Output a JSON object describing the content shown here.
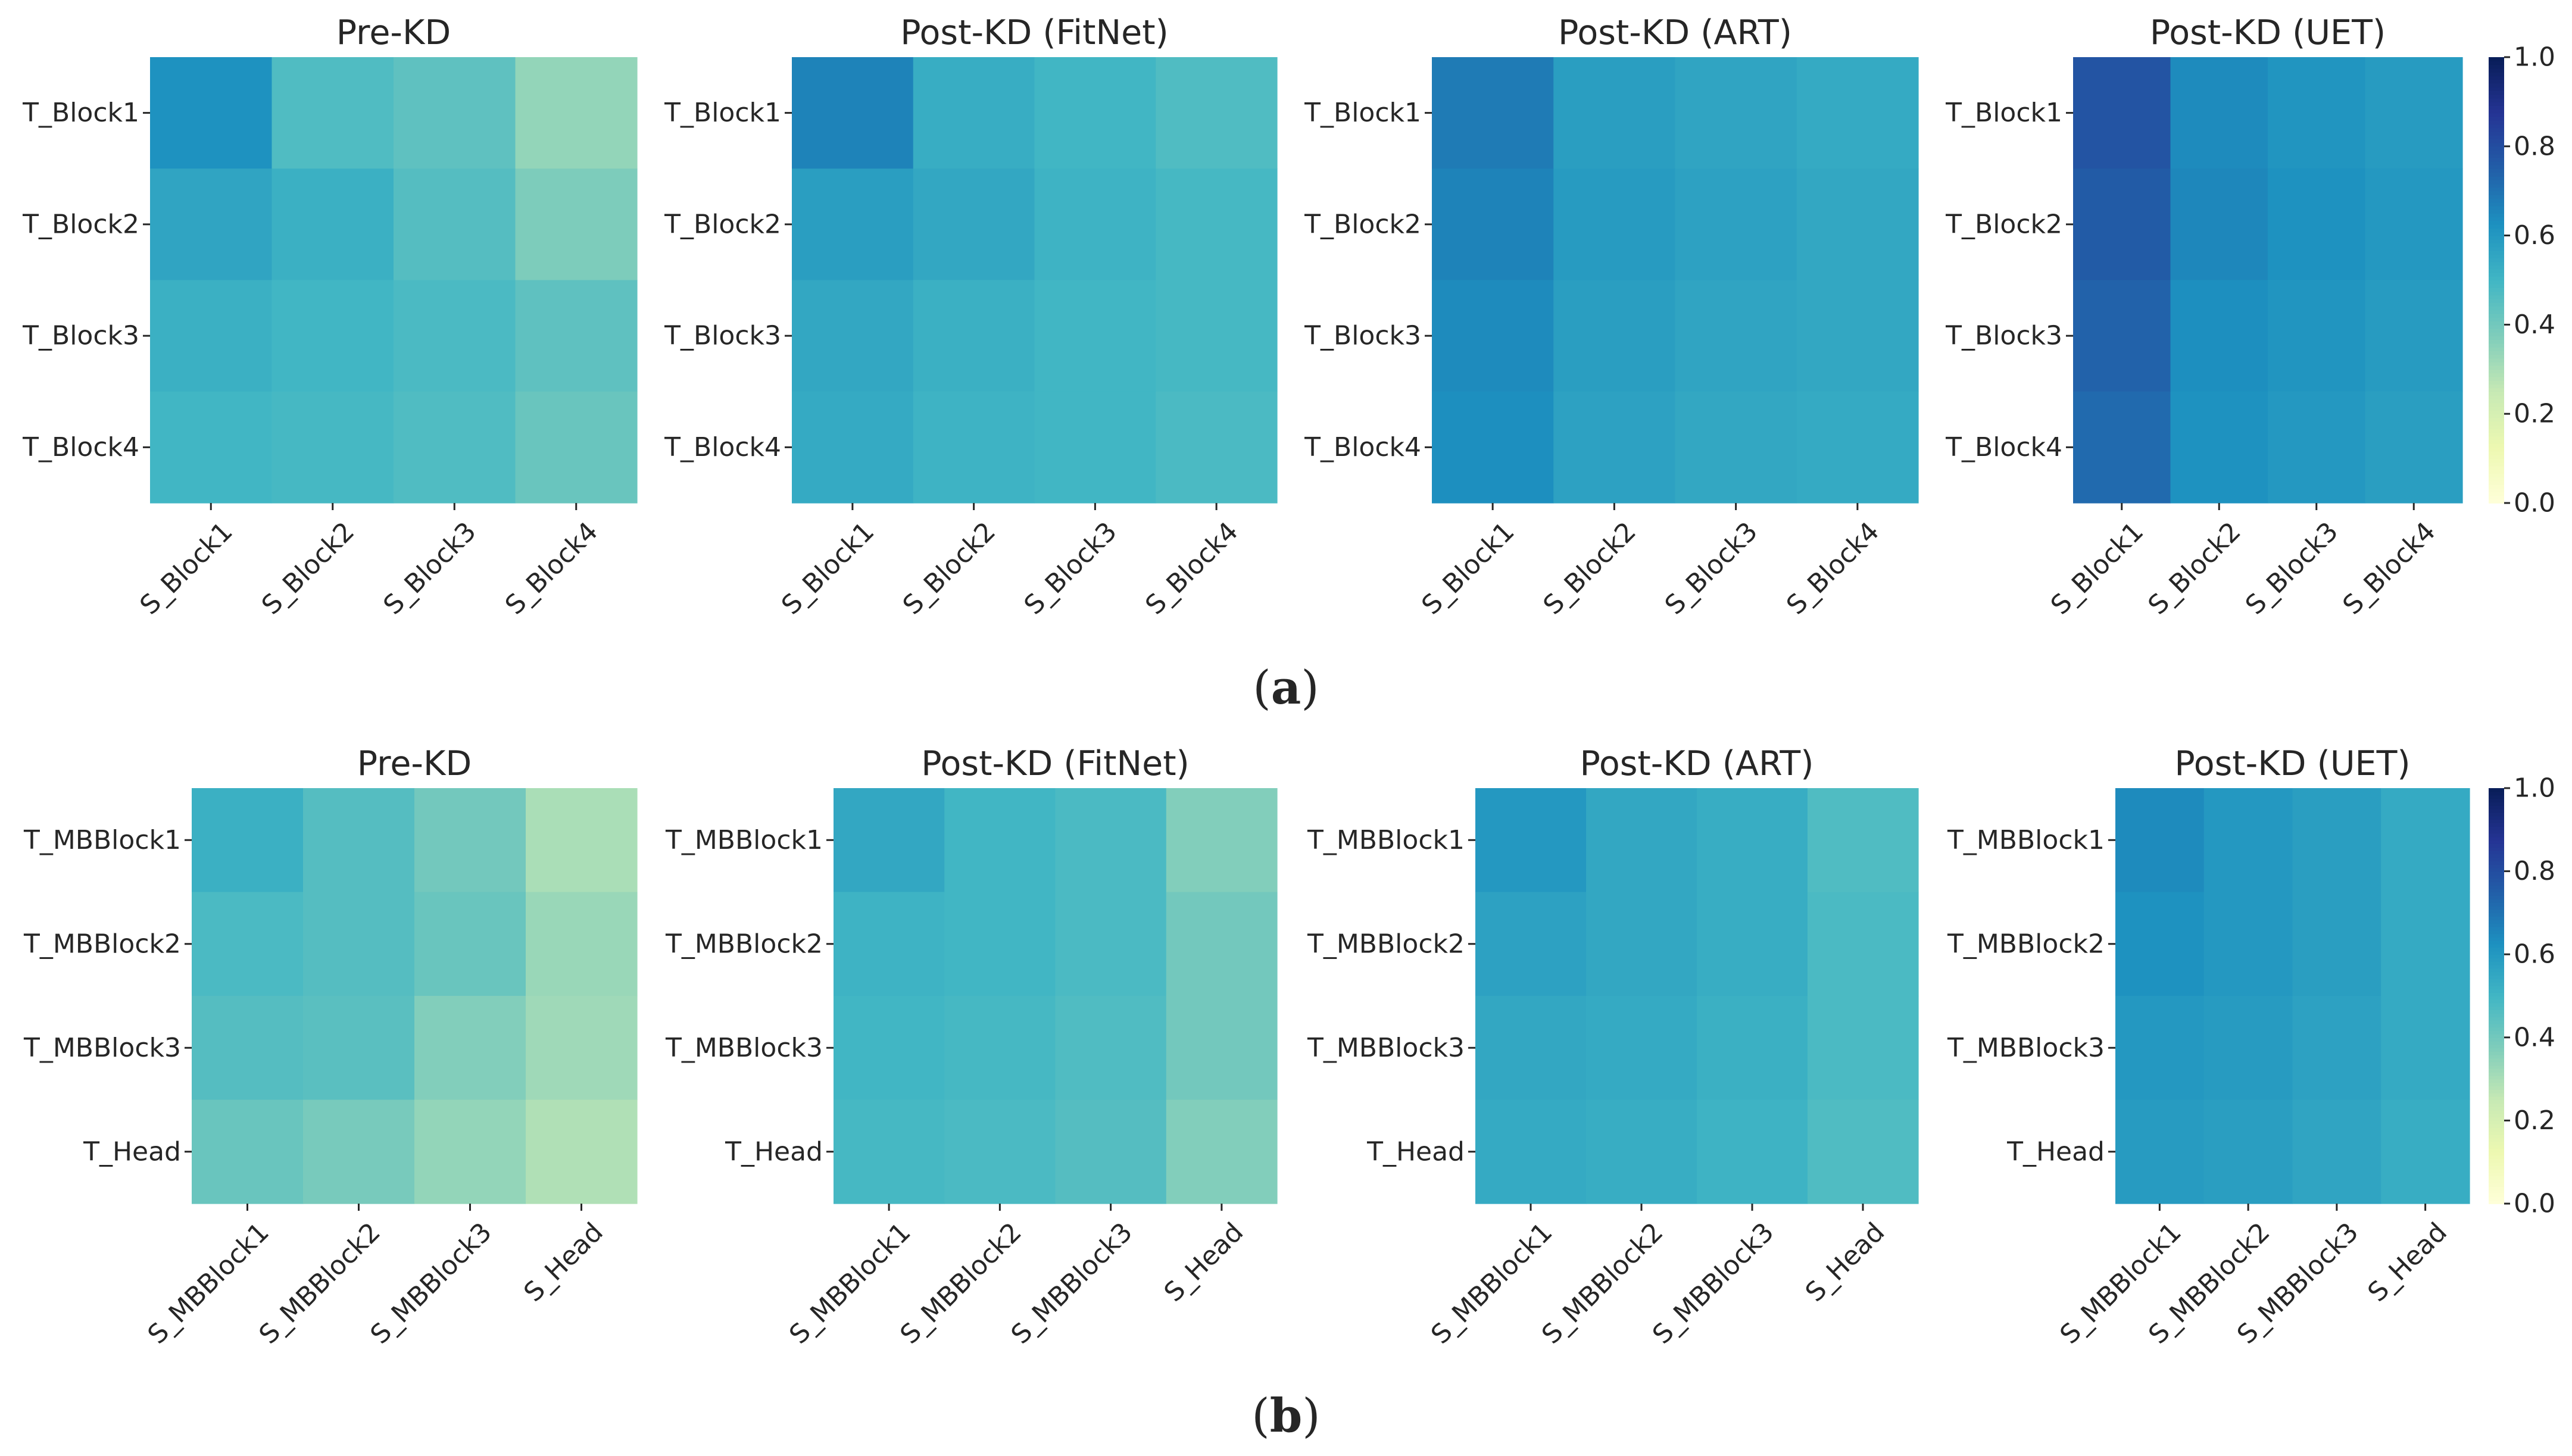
{
  "colorscale": {
    "name": "YlGnBu",
    "stops": [
      "#ffffd9",
      "#edf8b1",
      "#c7e9b4",
      "#7fcdbb",
      "#41b6c4",
      "#1d91c0",
      "#225ea8",
      "#253494",
      "#081d58"
    ]
  },
  "chart_data": [
    {
      "type": "heatmap",
      "row": "a",
      "title": "Pre-KD",
      "x_labels": [
        "S_Block1",
        "S_Block2",
        "S_Block3",
        "S_Block4"
      ],
      "y_labels": [
        "T_Block1",
        "T_Block2",
        "T_Block3",
        "T_Block4"
      ],
      "values": [
        [
          0.62,
          0.47,
          0.44,
          0.34
        ],
        [
          0.56,
          0.52,
          0.46,
          0.38
        ],
        [
          0.52,
          0.5,
          0.48,
          0.44
        ],
        [
          0.5,
          0.49,
          0.47,
          0.42
        ]
      ],
      "vmin": 0.0,
      "vmax": 1.0
    },
    {
      "type": "heatmap",
      "row": "a",
      "title": "Post-KD (FitNet)",
      "x_labels": [
        "S_Block1",
        "S_Block2",
        "S_Block3",
        "S_Block4"
      ],
      "y_labels": [
        "T_Block1",
        "T_Block2",
        "T_Block3",
        "T_Block4"
      ],
      "values": [
        [
          0.66,
          0.53,
          0.5,
          0.47
        ],
        [
          0.58,
          0.55,
          0.51,
          0.49
        ],
        [
          0.55,
          0.52,
          0.5,
          0.49
        ],
        [
          0.54,
          0.51,
          0.5,
          0.48
        ]
      ],
      "vmin": 0.0,
      "vmax": 1.0
    },
    {
      "type": "heatmap",
      "row": "a",
      "title": "Post-KD (ART)",
      "x_labels": [
        "S_Block1",
        "S_Block2",
        "S_Block3",
        "S_Block4"
      ],
      "y_labels": [
        "T_Block1",
        "T_Block2",
        "T_Block3",
        "T_Block4"
      ],
      "values": [
        [
          0.68,
          0.58,
          0.56,
          0.54
        ],
        [
          0.66,
          0.59,
          0.57,
          0.55
        ],
        [
          0.64,
          0.58,
          0.56,
          0.55
        ],
        [
          0.63,
          0.57,
          0.55,
          0.54
        ]
      ],
      "vmin": 0.0,
      "vmax": 1.0
    },
    {
      "type": "heatmap",
      "row": "a",
      "title": "Post-KD (UET)",
      "x_labels": [
        "S_Block1",
        "S_Block2",
        "S_Block3",
        "S_Block4"
      ],
      "y_labels": [
        "T_Block1",
        "T_Block2",
        "T_Block3",
        "T_Block4"
      ],
      "values": [
        [
          0.78,
          0.64,
          0.61,
          0.59
        ],
        [
          0.76,
          0.65,
          0.62,
          0.6
        ],
        [
          0.74,
          0.63,
          0.61,
          0.59
        ],
        [
          0.72,
          0.62,
          0.6,
          0.58
        ]
      ],
      "vmin": 0.0,
      "vmax": 1.0
    },
    {
      "type": "heatmap",
      "row": "b",
      "title": "Pre-KD",
      "x_labels": [
        "S_MBBlock1",
        "S_MBBlock2",
        "S_MBBlock3",
        "S_Head"
      ],
      "y_labels": [
        "T_MBBlock1",
        "T_MBBlock2",
        "T_MBBlock3",
        "T_Head"
      ],
      "values": [
        [
          0.52,
          0.46,
          0.4,
          0.3
        ],
        [
          0.48,
          0.46,
          0.42,
          0.33
        ],
        [
          0.46,
          0.45,
          0.37,
          0.32
        ],
        [
          0.42,
          0.39,
          0.34,
          0.29
        ]
      ],
      "vmin": 0.0,
      "vmax": 1.0
    },
    {
      "type": "heatmap",
      "row": "b",
      "title": "Post-KD (FitNet)",
      "x_labels": [
        "S_MBBlock1",
        "S_MBBlock2",
        "S_MBBlock3",
        "S_Head"
      ],
      "y_labels": [
        "T_MBBlock1",
        "T_MBBlock2",
        "T_MBBlock3",
        "T_Head"
      ],
      "values": [
        [
          0.55,
          0.5,
          0.48,
          0.37
        ],
        [
          0.51,
          0.5,
          0.48,
          0.4
        ],
        [
          0.5,
          0.49,
          0.47,
          0.4
        ],
        [
          0.49,
          0.48,
          0.46,
          0.37
        ]
      ],
      "vmin": 0.0,
      "vmax": 1.0
    },
    {
      "type": "heatmap",
      "row": "b",
      "title": "Post-KD (ART)",
      "x_labels": [
        "S_MBBlock1",
        "S_MBBlock2",
        "S_MBBlock3",
        "S_Head"
      ],
      "y_labels": [
        "T_MBBlock1",
        "T_MBBlock2",
        "T_MBBlock3",
        "T_Head"
      ],
      "values": [
        [
          0.6,
          0.55,
          0.53,
          0.47
        ],
        [
          0.57,
          0.55,
          0.53,
          0.48
        ],
        [
          0.55,
          0.54,
          0.52,
          0.48
        ],
        [
          0.54,
          0.53,
          0.51,
          0.47
        ]
      ],
      "vmin": 0.0,
      "vmax": 1.0
    },
    {
      "type": "heatmap",
      "row": "b",
      "title": "Post-KD (UET)",
      "x_labels": [
        "S_MBBlock1",
        "S_MBBlock2",
        "S_MBBlock3",
        "S_Head"
      ],
      "y_labels": [
        "T_MBBlock1",
        "T_MBBlock2",
        "T_MBBlock3",
        "T_Head"
      ],
      "values": [
        [
          0.64,
          0.6,
          0.58,
          0.54
        ],
        [
          0.62,
          0.6,
          0.58,
          0.54
        ],
        [
          0.6,
          0.59,
          0.57,
          0.54
        ],
        [
          0.59,
          0.58,
          0.56,
          0.53
        ]
      ],
      "vmin": 0.0,
      "vmax": 1.0
    }
  ],
  "colorbars": [
    {
      "row": "a",
      "ticks": [
        "0.0",
        "0.2",
        "0.4",
        "0.6",
        "0.8",
        "1.0"
      ],
      "range": [
        0.0,
        1.0
      ]
    },
    {
      "row": "b",
      "ticks": [
        "0.0",
        "0.2",
        "0.4",
        "0.6",
        "0.8",
        "1.0"
      ],
      "range": [
        0.0,
        1.0
      ]
    }
  ],
  "panel_labels": [
    {
      "row": "a",
      "open": "(",
      "letter": "a",
      "close": ")"
    },
    {
      "row": "b",
      "open": "(",
      "letter": "b",
      "close": ")"
    }
  ]
}
